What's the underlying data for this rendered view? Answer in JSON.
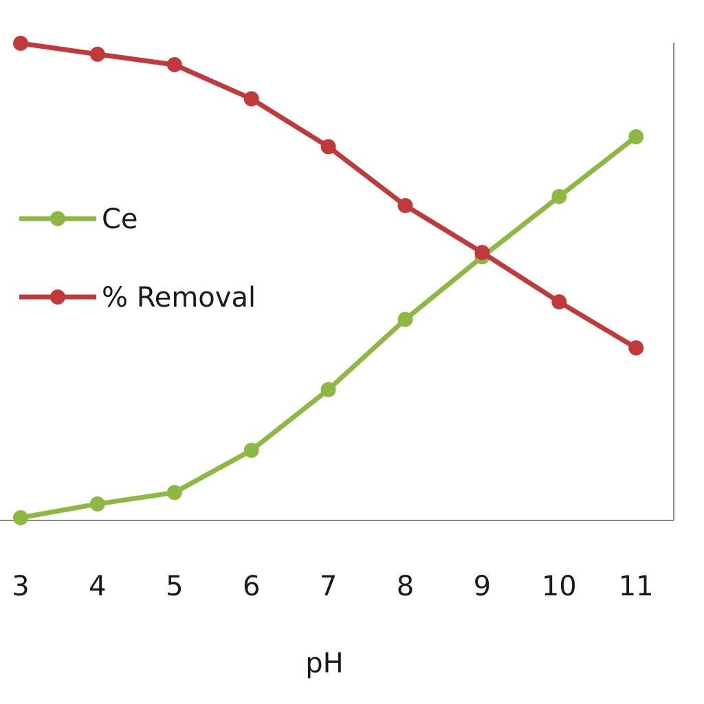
{
  "chart_data": {
    "type": "line",
    "xlabel": "pH",
    "x": [
      3,
      4,
      5,
      6,
      7,
      8,
      9,
      10,
      11
    ],
    "legend_position": "left",
    "grid": false,
    "series": [
      {
        "name": "Ce",
        "color": "#8DB843",
        "values": [
          0.0,
          0.029,
          0.053,
          0.142,
          0.27,
          0.418,
          0.55,
          0.677,
          0.803
        ]
      },
      {
        "name": "% Removal",
        "color": "#C0393B",
        "values": [
          1.0,
          0.977,
          0.955,
          0.883,
          0.782,
          0.658,
          0.559,
          0.455,
          0.358
        ]
      }
    ]
  }
}
